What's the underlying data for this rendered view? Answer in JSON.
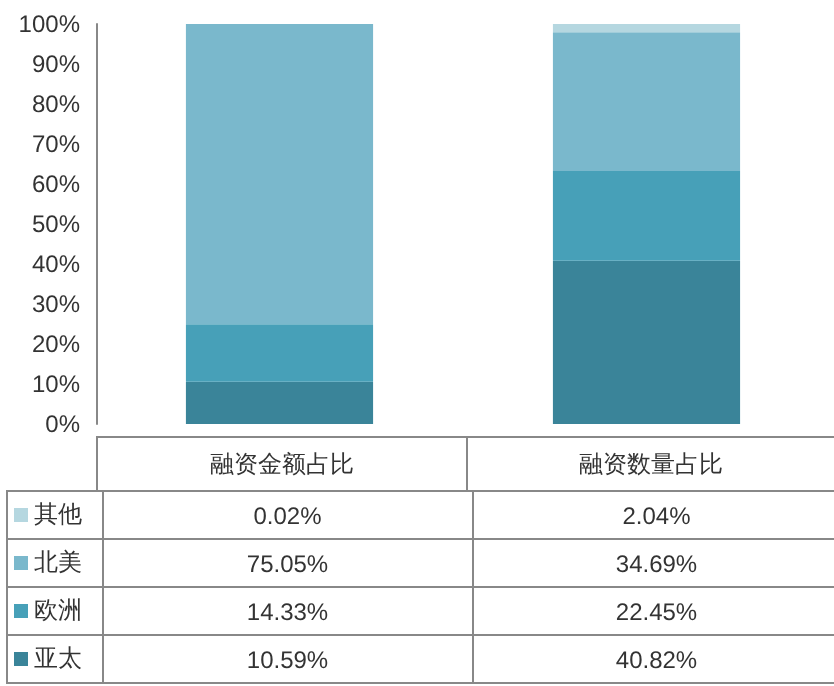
{
  "chart_data": {
    "type": "bar",
    "stacked": true,
    "categories": [
      "融资金额占比",
      "融资数量占比"
    ],
    "series": [
      {
        "name": "亚太",
        "color": "#3a8499",
        "values": [
          10.59,
          40.82
        ],
        "value_labels": [
          "10.59%",
          "40.82%"
        ]
      },
      {
        "name": "欧洲",
        "color": "#47a0b8",
        "values": [
          14.33,
          22.45
        ],
        "value_labels": [
          "14.33%",
          "22.45%"
        ]
      },
      {
        "name": "北美",
        "color": "#7ab8cc",
        "values": [
          75.05,
          34.69
        ],
        "value_labels": [
          "75.05%",
          "34.69%"
        ]
      },
      {
        "name": "其他",
        "color": "#b5d7e0",
        "values": [
          0.02,
          2.04
        ],
        "value_labels": [
          "0.02%",
          "2.04%"
        ]
      }
    ],
    "ylim": [
      0,
      100
    ],
    "yticks": [
      {
        "value": 0,
        "label": "0%"
      },
      {
        "value": 10,
        "label": "10%"
      },
      {
        "value": 20,
        "label": "20%"
      },
      {
        "value": 30,
        "label": "30%"
      },
      {
        "value": 40,
        "label": "40%"
      },
      {
        "value": 50,
        "label": "50%"
      },
      {
        "value": 60,
        "label": "60%"
      },
      {
        "value": 70,
        "label": "70%"
      },
      {
        "value": 80,
        "label": "80%"
      },
      {
        "value": 90,
        "label": "90%"
      },
      {
        "value": 100,
        "label": "100%"
      }
    ],
    "grid": false,
    "legend": "bottom left"
  }
}
